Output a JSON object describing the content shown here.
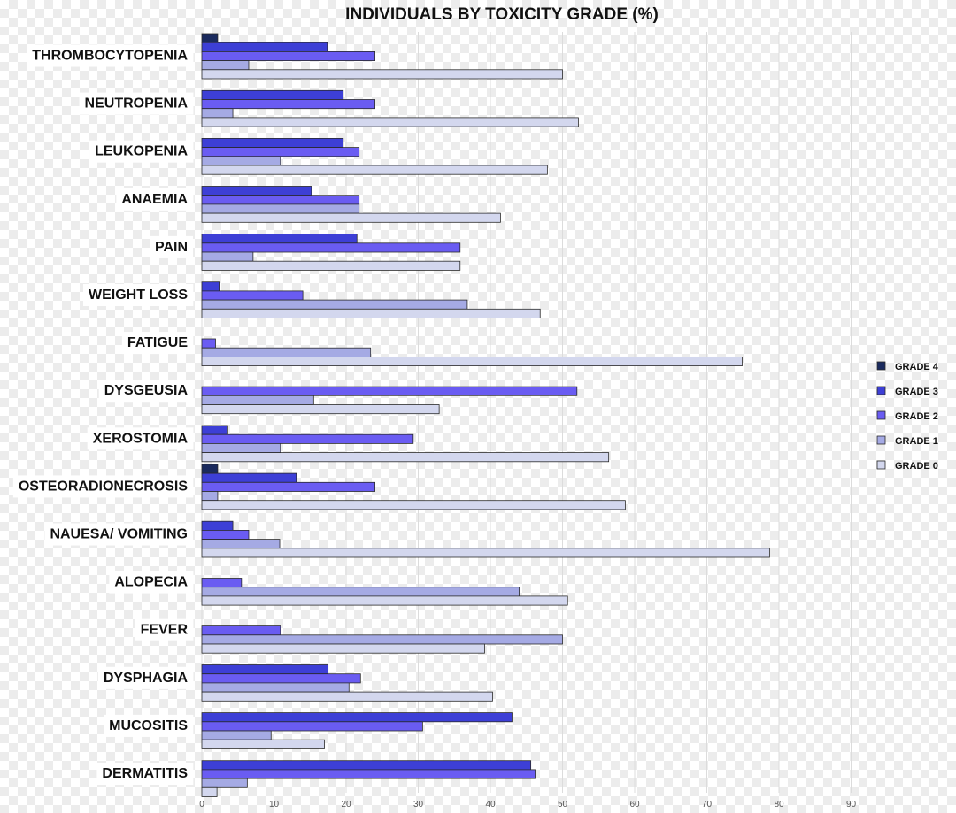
{
  "chart_data": {
    "type": "bar",
    "orientation": "horizontal",
    "title": "INDIVIDUALS BY TOXICITY GRADE (%)",
    "xlabel": "",
    "ylabel": "",
    "xlim": [
      0,
      90
    ],
    "x_ticks": [
      0,
      10,
      20,
      30,
      40,
      50,
      60,
      70,
      80,
      90
    ],
    "grid": true,
    "legend_position": "right",
    "categories": [
      "THROMBOCYTOPENIA",
      "NEUTROPENIA",
      "LEUKOPENIA",
      "ANAEMIA",
      "PAIN",
      "WEIGHT LOSS",
      "FATIGUE",
      "DYSGEUSIA",
      "XEROSTOMIA",
      "OSTEORADIONECROSIS",
      "NAUESA/ VOMITING",
      "ALOPECIA",
      "FEVER",
      "DYSPHAGIA",
      "MUCOSITIS",
      "DERMATITIS"
    ],
    "series": [
      {
        "name": "GRADE 4",
        "color": "#1a2a5e",
        "values": [
          2.2,
          0,
          0,
          0,
          0,
          0,
          0,
          0,
          0,
          2.2,
          0,
          0,
          0,
          0,
          0,
          0
        ]
      },
      {
        "name": "GRADE 3",
        "color": "#3d3fd6",
        "values": [
          17.4,
          19.6,
          19.6,
          15.2,
          21.5,
          2.4,
          0,
          0,
          3.6,
          13.1,
          4.3,
          0,
          0,
          17.5,
          43.0,
          45.6
        ]
      },
      {
        "name": "GRADE 2",
        "color": "#6a5cf2",
        "values": [
          24.0,
          24.0,
          21.8,
          21.8,
          35.8,
          14.0,
          1.9,
          52.0,
          29.3,
          24.0,
          6.5,
          5.5,
          10.9,
          22.0,
          30.6,
          46.2
        ]
      },
      {
        "name": "GRADE 1",
        "color": "#a5aae4",
        "values": [
          6.5,
          4.3,
          10.9,
          21.8,
          7.1,
          36.8,
          23.4,
          15.5,
          10.9,
          2.2,
          10.8,
          44.0,
          50.0,
          20.4,
          9.6,
          6.3
        ]
      },
      {
        "name": "GRADE 0",
        "color": "#d3d7ee",
        "values": [
          50.0,
          52.2,
          47.9,
          41.4,
          35.8,
          46.9,
          74.9,
          32.9,
          56.4,
          58.7,
          78.7,
          50.7,
          39.2,
          40.3,
          17.0,
          2.1
        ]
      }
    ]
  }
}
